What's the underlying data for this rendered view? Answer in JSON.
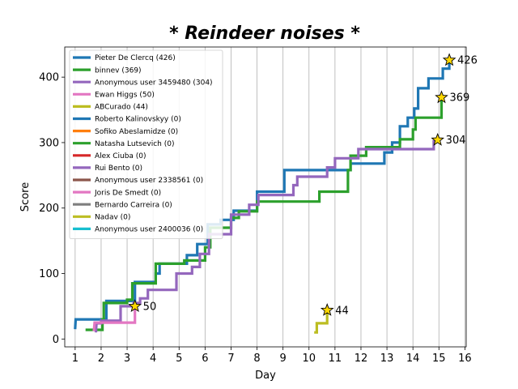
{
  "chart_data": {
    "type": "line",
    "title": "* Reindeer noises *",
    "xlabel": "Day",
    "ylabel": "Score",
    "xlim": [
      0.6,
      16.05
    ],
    "ylim": [
      -12,
      446
    ],
    "xticks": [
      1,
      2,
      3,
      4,
      5,
      6,
      7,
      8,
      9,
      10,
      11,
      12,
      13,
      14,
      15,
      16
    ],
    "yticks": [
      0,
      100,
      200,
      300,
      400
    ],
    "grid": "vertical",
    "legend_position": "top-left",
    "series": [
      {
        "name": "Pieter De Clercq (426)",
        "color": "#1f77b4",
        "final": 426,
        "points": [
          [
            1.0,
            15
          ],
          [
            1.02,
            30
          ],
          [
            2.2,
            30
          ],
          [
            2.2,
            58
          ],
          [
            3.3,
            58
          ],
          [
            3.3,
            87
          ],
          [
            4.1,
            87
          ],
          [
            4.1,
            100
          ],
          [
            4.25,
            100
          ],
          [
            4.25,
            115
          ],
          [
            5.3,
            115
          ],
          [
            5.3,
            128
          ],
          [
            5.7,
            128
          ],
          [
            5.7,
            145
          ],
          [
            6.1,
            145
          ],
          [
            6.1,
            175
          ],
          [
            6.6,
            175
          ],
          [
            6.6,
            182
          ],
          [
            7.1,
            182
          ],
          [
            7.1,
            196
          ],
          [
            8.0,
            196
          ],
          [
            8.0,
            225
          ],
          [
            9.05,
            225
          ],
          [
            9.05,
            258
          ],
          [
            11.6,
            258
          ],
          [
            11.6,
            268
          ],
          [
            12.9,
            268
          ],
          [
            12.9,
            285
          ],
          [
            13.2,
            285
          ],
          [
            13.2,
            300
          ],
          [
            13.5,
            300
          ],
          [
            13.5,
            325
          ],
          [
            13.8,
            325
          ],
          [
            13.8,
            338
          ],
          [
            14.05,
            338
          ],
          [
            14.05,
            352
          ],
          [
            14.2,
            352
          ],
          [
            14.2,
            383
          ],
          [
            14.6,
            383
          ],
          [
            14.6,
            398
          ],
          [
            15.15,
            398
          ],
          [
            15.15,
            413
          ],
          [
            15.4,
            413
          ],
          [
            15.4,
            426
          ]
        ],
        "star": {
          "x": 15.4,
          "y": 426,
          "label": "426"
        }
      },
      {
        "name": "binnev (369)",
        "color": "#2ca02c",
        "final": 369,
        "points": [
          [
            1.4,
            14
          ],
          [
            1.7,
            14
          ],
          [
            2.05,
            14
          ],
          [
            2.05,
            30
          ],
          [
            2.1,
            30
          ],
          [
            2.1,
            55
          ],
          [
            3.0,
            55
          ],
          [
            3.0,
            60
          ],
          [
            3.2,
            60
          ],
          [
            3.2,
            85
          ],
          [
            4.1,
            85
          ],
          [
            4.1,
            115
          ],
          [
            5.2,
            115
          ],
          [
            5.2,
            120
          ],
          [
            6.0,
            120
          ],
          [
            6.0,
            140
          ],
          [
            6.2,
            140
          ],
          [
            6.2,
            170
          ],
          [
            7.0,
            170
          ],
          [
            7.0,
            185
          ],
          [
            7.3,
            185
          ],
          [
            7.3,
            195
          ],
          [
            8.0,
            195
          ],
          [
            8.0,
            210
          ],
          [
            10.4,
            210
          ],
          [
            10.4,
            225
          ],
          [
            11.5,
            225
          ],
          [
            11.5,
            258
          ],
          [
            11.6,
            258
          ],
          [
            11.6,
            280
          ],
          [
            12.2,
            280
          ],
          [
            12.2,
            293
          ],
          [
            13.5,
            293
          ],
          [
            13.5,
            305
          ],
          [
            14.0,
            305
          ],
          [
            14.0,
            320
          ],
          [
            14.1,
            320
          ],
          [
            14.1,
            338
          ],
          [
            15.1,
            338
          ],
          [
            15.1,
            369
          ]
        ],
        "star": {
          "x": 15.1,
          "y": 369,
          "label": "369"
        }
      },
      {
        "name": "Anonymous user 3459480 (304)",
        "color": "#9467bd",
        "final": 304,
        "points": [
          [
            1.8,
            10
          ],
          [
            1.82,
            24
          ],
          [
            2.0,
            24
          ],
          [
            2.0,
            28
          ],
          [
            2.75,
            28
          ],
          [
            2.75,
            50
          ],
          [
            3.25,
            50
          ],
          [
            3.25,
            55
          ],
          [
            3.5,
            55
          ],
          [
            3.5,
            62
          ],
          [
            3.8,
            62
          ],
          [
            3.8,
            75
          ],
          [
            4.9,
            75
          ],
          [
            4.9,
            100
          ],
          [
            5.5,
            100
          ],
          [
            5.5,
            110
          ],
          [
            5.8,
            110
          ],
          [
            5.8,
            130
          ],
          [
            6.15,
            130
          ],
          [
            6.15,
            160
          ],
          [
            7.0,
            160
          ],
          [
            7.0,
            190
          ],
          [
            7.7,
            190
          ],
          [
            7.7,
            205
          ],
          [
            8.05,
            205
          ],
          [
            8.05,
            220
          ],
          [
            9.4,
            220
          ],
          [
            9.4,
            235
          ],
          [
            9.55,
            235
          ],
          [
            9.55,
            248
          ],
          [
            10.7,
            248
          ],
          [
            10.7,
            262
          ],
          [
            11.0,
            262
          ],
          [
            11.0,
            276
          ],
          [
            11.9,
            276
          ],
          [
            11.9,
            290
          ],
          [
            14.8,
            290
          ],
          [
            14.8,
            304
          ]
        ],
        "star": {
          "x": 14.95,
          "y": 304,
          "label": "304"
        }
      },
      {
        "name": "Ewan Higgs (50)",
        "color": "#e377c2",
        "final": 50,
        "points": [
          [
            1.72,
            12
          ],
          [
            1.75,
            25
          ],
          [
            3.0,
            25
          ],
          [
            3.3,
            25
          ],
          [
            3.3,
            50
          ]
        ],
        "star": {
          "x": 3.3,
          "y": 50,
          "label": "50"
        }
      },
      {
        "name": "ABCurado (44)",
        "color": "#bcbd22",
        "final": 44,
        "points": [
          [
            10.2,
            10
          ],
          [
            10.3,
            10
          ],
          [
            10.3,
            24
          ],
          [
            10.7,
            24
          ],
          [
            10.7,
            44
          ]
        ],
        "star": {
          "x": 10.7,
          "y": 44,
          "label": "44"
        }
      },
      {
        "name": "Roberto Kalinovskyy (0)",
        "color": "#1f77b4",
        "final": 0
      },
      {
        "name": "Sofiko Abeslamidze (0)",
        "color": "#ff7f0e",
        "final": 0
      },
      {
        "name": "Natasha Lutsevich (0)",
        "color": "#2ca02c",
        "final": 0
      },
      {
        "name": "Alex Ciuba (0)",
        "color": "#d62728",
        "final": 0
      },
      {
        "name": "Rui Bento (0)",
        "color": "#9467bd",
        "final": 0
      },
      {
        "name": "Anonymous user 2338561 (0)",
        "color": "#8c564b",
        "final": 0
      },
      {
        "name": "Joris De Smedt (0)",
        "color": "#e377c2",
        "final": 0
      },
      {
        "name": "Bernardo Carreira (0)",
        "color": "#7f7f7f",
        "final": 0
      },
      {
        "name": "Nadav (0)",
        "color": "#bcbd22",
        "final": 0
      },
      {
        "name": "Anonymous user 2400036 (0)",
        "color": "#17becf",
        "final": 0
      }
    ],
    "marker": {
      "shape": "star",
      "fill": "#ffd700",
      "stroke": "#000000"
    }
  }
}
